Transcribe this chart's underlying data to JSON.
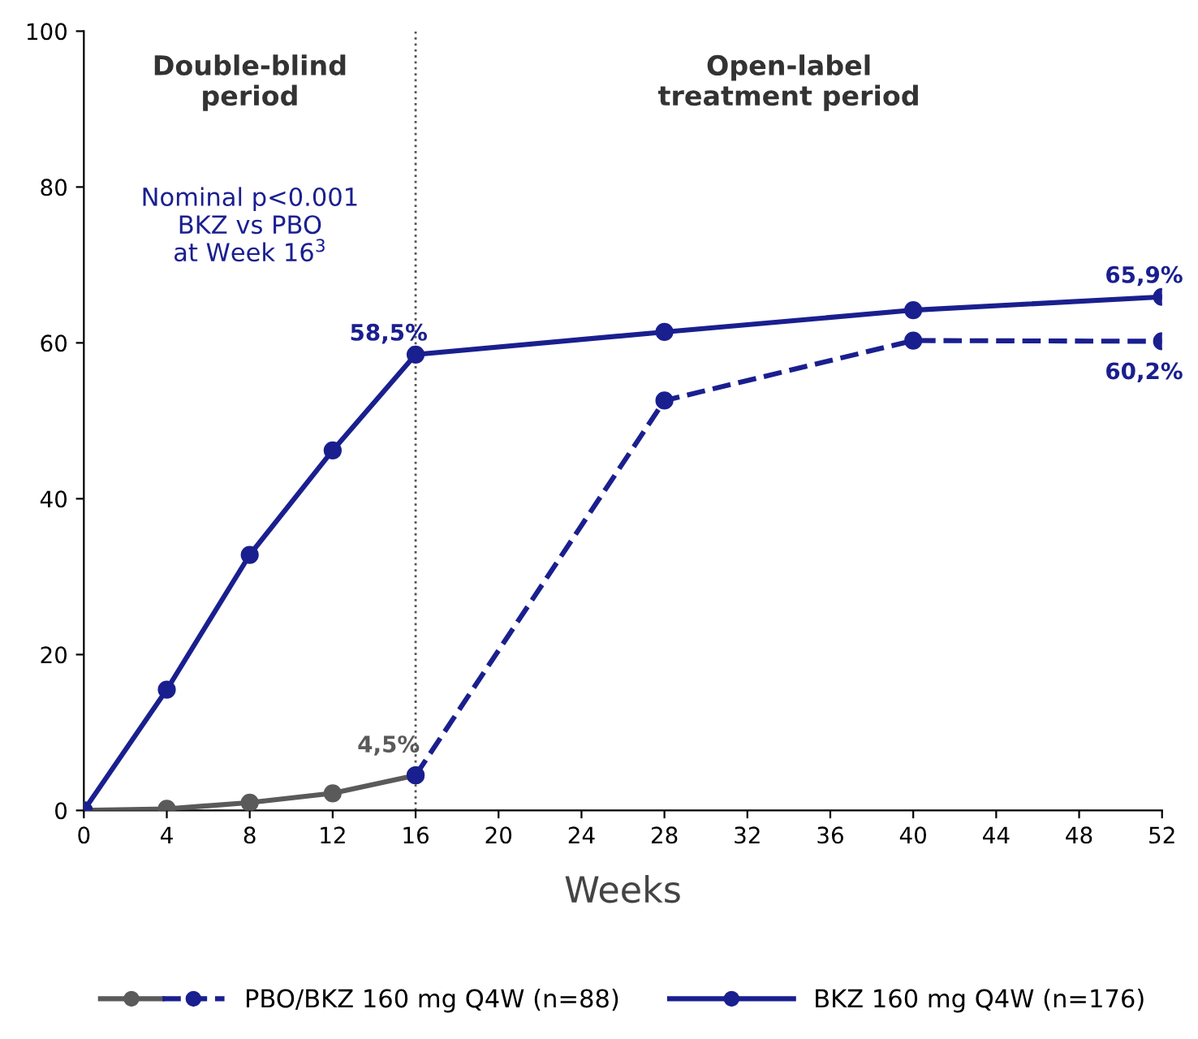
{
  "chart_data": {
    "type": "line",
    "xlabel": "Weeks",
    "xlim": [
      0,
      52
    ],
    "xticks": [
      0,
      4,
      8,
      12,
      16,
      20,
      24,
      28,
      32,
      36,
      40,
      44,
      48,
      52
    ],
    "ylim": [
      0,
      100
    ],
    "yticks": [
      0,
      20,
      40,
      60,
      80,
      100
    ],
    "grid": false,
    "legend": "bottom",
    "marker": "circle",
    "series": [
      {
        "color": "#5a5a5a",
        "line_style": "solid",
        "x": [
          0,
          4,
          8,
          12,
          16
        ],
        "values": [
          0,
          0.2,
          1.0,
          2.2,
          4.5
        ],
        "value_labels": [
          null,
          null,
          null,
          null,
          "4,5%"
        ]
      },
      {
        "name": "PBO/BKZ 160 mg Q4W (n=88)",
        "color": "#1a1f8f",
        "line_style": "dashed",
        "x": [
          16,
          28,
          40,
          52
        ],
        "values": [
          4.5,
          52.6,
          60.3,
          60.2
        ],
        "value_labels": [
          null,
          null,
          null,
          "60,2%"
        ]
      },
      {
        "name": "BKZ 160 mg Q4W (n=176)",
        "color": "#1a1f8f",
        "line_style": "solid",
        "x": [
          0,
          4,
          8,
          12,
          16,
          28,
          40,
          52
        ],
        "values": [
          0,
          15.5,
          32.8,
          46.2,
          58.5,
          61.4,
          64.2,
          65.9
        ],
        "value_labels": [
          null,
          null,
          null,
          null,
          "58,5%",
          null,
          null,
          "65,9%"
        ]
      }
    ],
    "ref_lines": [
      {
        "axis": "x",
        "value": 16,
        "color": "#555555",
        "line_style": "dotted"
      }
    ],
    "annotations": [
      "Double-blind\nperiod",
      "Open-label\ntreatment period",
      "Nominal p<0.001\nBKZ vs PBO\nat Week 16$^{3}$"
    ]
  }
}
